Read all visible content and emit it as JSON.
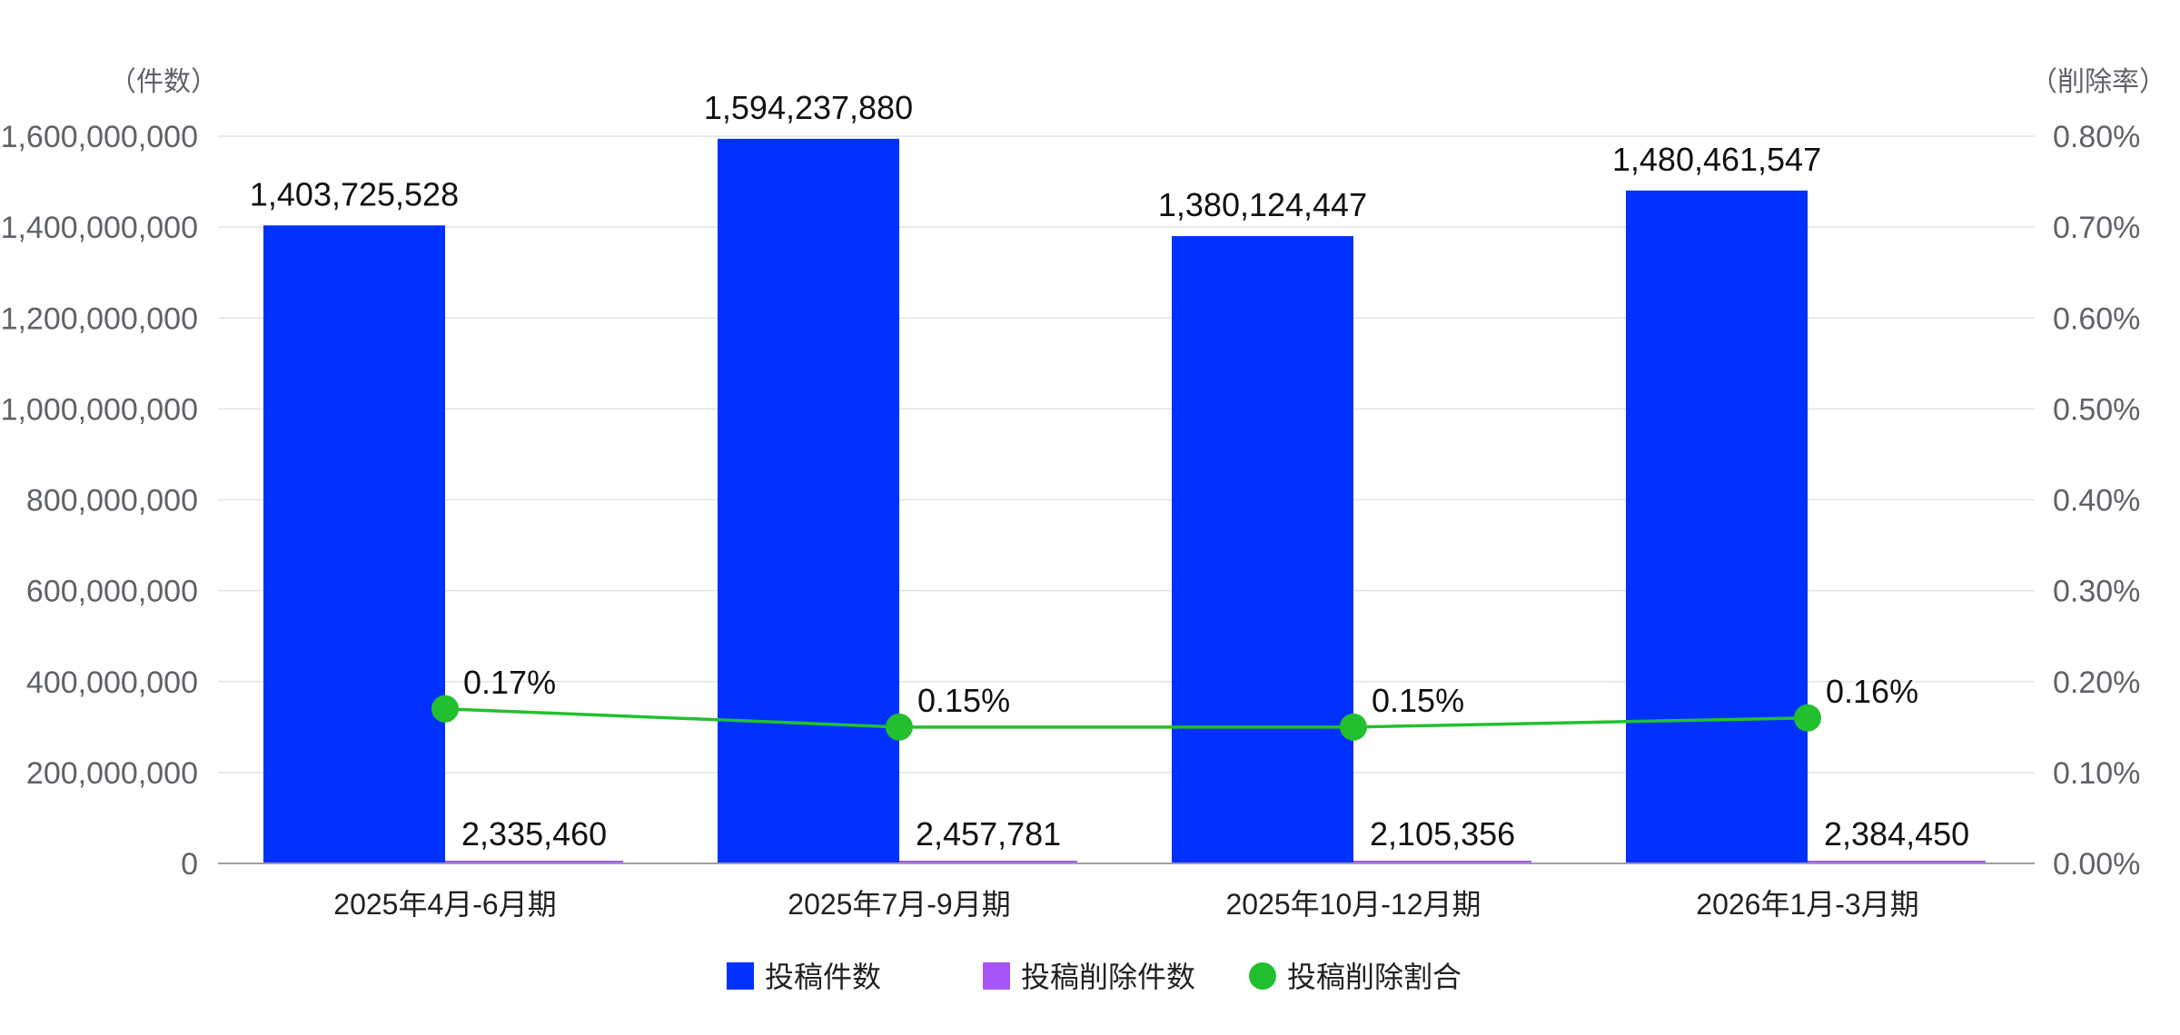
{
  "chart_data": {
    "type": "bar",
    "categories": [
      "2025年4月-6月期",
      "2025年7月-9月期",
      "2025年10月-12月期",
      "2026年1月-3月期"
    ],
    "series": [
      {
        "name": "投稿件数",
        "type": "bar",
        "axis": "left",
        "color": "#0031ff",
        "values": [
          1403725528,
          1594237880,
          1380124447,
          1480461547
        ],
        "labels": [
          "1,403,725,528",
          "1,594,237,880",
          "1,380,124,447",
          "1,480,461,547"
        ]
      },
      {
        "name": "投稿削除件数",
        "type": "bar",
        "axis": "left",
        "color": "#a855f7",
        "values": [
          2335460,
          2457781,
          2105356,
          2384450
        ],
        "labels": [
          "2,335,460",
          "2,457,781",
          "2,105,356",
          "2,384,450"
        ]
      },
      {
        "name": "投稿削除割合",
        "type": "line",
        "axis": "right",
        "color": "#22c02e",
        "values": [
          0.17,
          0.15,
          0.15,
          0.16
        ],
        "labels": [
          "0.17%",
          "0.15%",
          "0.15%",
          "0.16%"
        ]
      }
    ],
    "y_left": {
      "unit_label": "（件数）",
      "ylim": [
        0,
        1600000000
      ],
      "ticks": [
        "0",
        "200,000,000",
        "400,000,000",
        "600,000,000",
        "800,000,000",
        "1,000,000,000",
        "1,200,000,000",
        "1,400,000,000",
        "1,600,000,000"
      ]
    },
    "y_right": {
      "unit_label": "（削除率）",
      "ylim": [
        0,
        0.8
      ],
      "ticks": [
        "0.00%",
        "0.10%",
        "0.20%",
        "0.30%",
        "0.40%",
        "0.50%",
        "0.60%",
        "0.70%",
        "0.80%"
      ]
    },
    "grid": true,
    "legend_position": "bottom"
  }
}
